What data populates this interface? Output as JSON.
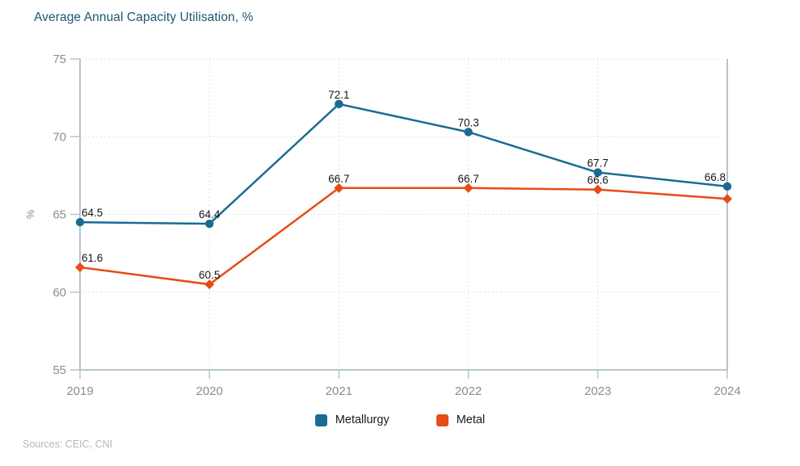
{
  "title": "Average Annual Capacity Utilisation, %",
  "source": "Sources: CEIC, CNI",
  "chart_data": {
    "type": "line",
    "title": "Average Annual Capacity Utilisation, %",
    "categories": [
      "2019",
      "2020",
      "2021",
      "2022",
      "2023",
      "2024"
    ],
    "series": [
      {
        "name": "Metallurgy",
        "color": "#1a6b93",
        "marker": "circle",
        "values": [
          64.5,
          64.4,
          72.1,
          70.3,
          67.7,
          66.8
        ],
        "point_labels": [
          "64.5",
          "64.4",
          "72.1",
          "70.3",
          "67.7",
          "66.8"
        ]
      },
      {
        "name": "Metal",
        "color": "#e74b16",
        "marker": "diamond",
        "values": [
          61.6,
          60.5,
          66.7,
          66.7,
          66.6,
          66.0
        ],
        "point_labels": [
          "61.6",
          "60.5",
          "66.7",
          "66.7",
          "66.6",
          ""
        ]
      }
    ],
    "xlabel": "",
    "ylabel": "%",
    "ylim": [
      55,
      75
    ],
    "yticks": [
      55,
      60,
      65,
      70,
      75
    ],
    "grid": "dotted",
    "legend_position": "bottom"
  },
  "style": {
    "axis_color": "#b5c4ce",
    "grid_color": "#d9d9d9",
    "tick_label_color": "#8c8c8c",
    "data_label_color": "#161616",
    "title_color": "#1c5570",
    "source_color": "#b4b6c3"
  }
}
